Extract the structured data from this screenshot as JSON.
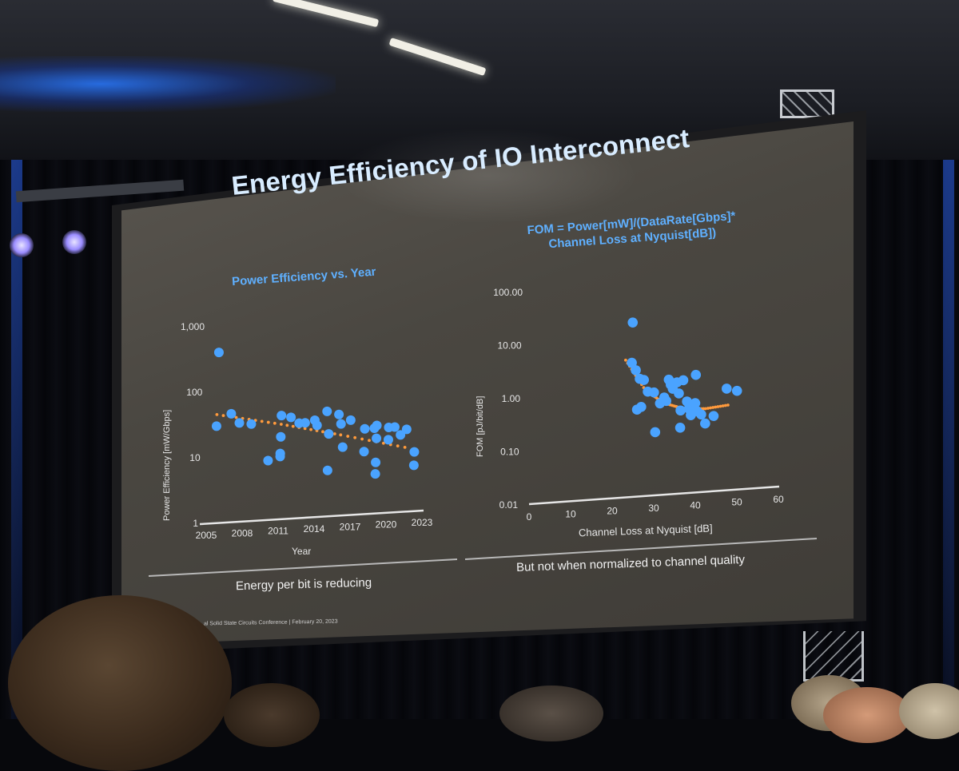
{
  "slide": {
    "title": "Energy Efficiency of IO Interconnect",
    "left_subtitle": "Power Efficiency vs. Year",
    "right_subtitle_line1": "FOM = Power[mW]/(DataRate[Gbps]*",
    "right_subtitle_line2": "Channel Loss at Nyquist[dB])",
    "left_caption": "Energy per bit is reducing",
    "right_caption": "But not when normalized to channel quality",
    "footer": "al Solid State Circuits Conference  |  February 20, 2023"
  },
  "colors": {
    "points": "#4aa3ff",
    "trend": "#ff9a3c",
    "axis": "#e6e6e6",
    "title": "#d8ecff",
    "subtitle": "#5fb0ff"
  },
  "chart_data": [
    {
      "type": "scatter",
      "title": "Power Efficiency vs. Year",
      "xlabel": "Year",
      "ylabel": "Power Efficiency [mW/Gbps]",
      "xscale": "linear",
      "yscale": "log",
      "xlim": [
        2005,
        2023
      ],
      "ylim": [
        1,
        1000
      ],
      "xticks": [
        "2005",
        "2008",
        "2011",
        "2014",
        "2017",
        "2020",
        "2023"
      ],
      "yticks": [
        "1,000",
        "100",
        "10",
        "1"
      ],
      "series": [
        {
          "values": [
            [
              2005.6,
              400
            ],
            [
              2005.6,
              30
            ],
            [
              2006.8,
              45
            ],
            [
              2007.5,
              32
            ],
            [
              2008.5,
              30
            ],
            [
              2010.0,
              8
            ],
            [
              2011.0,
              38
            ],
            [
              2011.0,
              18
            ],
            [
              2011.0,
              10
            ],
            [
              2011.0,
              9
            ],
            [
              2011.8,
              35
            ],
            [
              2012.5,
              28
            ],
            [
              2013.0,
              28
            ],
            [
              2013.8,
              30
            ],
            [
              2014.0,
              25
            ],
            [
              2014.8,
              40
            ],
            [
              2015.0,
              18
            ],
            [
              2015.0,
              5
            ],
            [
              2015.8,
              35
            ],
            [
              2016.0,
              25
            ],
            [
              2016.2,
              11
            ],
            [
              2016.8,
              28
            ],
            [
              2018.0,
              20
            ],
            [
              2018.0,
              9
            ],
            [
              2018.8,
              20
            ],
            [
              2019.0,
              22
            ],
            [
              2019.0,
              14
            ],
            [
              2019.0,
              6
            ],
            [
              2019.0,
              4
            ],
            [
              2020.0,
              20
            ],
            [
              2020.0,
              13
            ],
            [
              2020.5,
              20
            ],
            [
              2021.0,
              15
            ],
            [
              2021.5,
              18
            ],
            [
              2022.2,
              8
            ],
            [
              2022.2,
              5
            ]
          ]
        }
      ],
      "trend": {
        "fit": "exponential",
        "points": [
          [
            2005.6,
            45
          ],
          [
            2011.0,
            28
          ],
          [
            2016.0,
            17
          ],
          [
            2022.0,
            9
          ]
        ]
      },
      "grid": false,
      "legend": "none"
    },
    {
      "type": "scatter",
      "xlabel": "Channel Loss at Nyquist [dB]",
      "ylabel": "FOM [pJ/bit/dB]",
      "xscale": "linear",
      "yscale": "log",
      "xlim": [
        0,
        60
      ],
      "ylim": [
        0.01,
        100
      ],
      "xticks": [
        "0",
        "10",
        "20",
        "30",
        "40",
        "50",
        "60"
      ],
      "yticks": [
        "100.00",
        "10.00",
        "1.00",
        "0.10",
        "0.01"
      ],
      "series": [
        {
          "values": [
            [
              24,
              20
            ],
            [
              24,
              3.5
            ],
            [
              25,
              2.5
            ],
            [
              26,
              1.7
            ],
            [
              27,
              1.6
            ],
            [
              25.5,
              0.45
            ],
            [
              26.5,
              0.5
            ],
            [
              28,
              0.95
            ],
            [
              29.5,
              0.9
            ],
            [
              30,
              0.16
            ],
            [
              31,
              0.55
            ],
            [
              32,
              0.7
            ],
            [
              32.5,
              0.6
            ],
            [
              33,
              1.5
            ],
            [
              33.5,
              1.2
            ],
            [
              34,
              1.0
            ],
            [
              35,
              1.3
            ],
            [
              35.5,
              0.8
            ],
            [
              36,
              0.38
            ],
            [
              36,
              0.18
            ],
            [
              36.5,
              1.4
            ],
            [
              37.5,
              0.55
            ],
            [
              38,
              0.4
            ],
            [
              38.5,
              0.3
            ],
            [
              39.5,
              0.5
            ],
            [
              39.5,
              1.7
            ],
            [
              40,
              0.35
            ],
            [
              41,
              0.3
            ],
            [
              42,
              0.2
            ],
            [
              44,
              0.27
            ],
            [
              47,
              0.85
            ],
            [
              49.5,
              0.75
            ]
          ]
        }
      ],
      "trend": {
        "fit": "quadratic",
        "points": [
          [
            22.5,
            4.0
          ],
          [
            27.5,
            1.0
          ],
          [
            32,
            0.55
          ],
          [
            37,
            0.4
          ],
          [
            42,
            0.38
          ],
          [
            48,
            0.42
          ]
        ]
      },
      "grid": false,
      "legend": "none"
    }
  ]
}
